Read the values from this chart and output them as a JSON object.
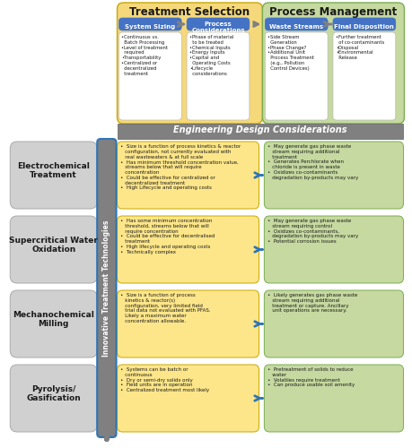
{
  "eng_banner": "Engineering Design Considerations",
  "vert_label": "Innovative Treatment Technologies",
  "side_labels": [
    "Electrochemical\nTreatment",
    "Supercritical Water\nOxidation",
    "Mechanochemical\nMilling",
    "Pyrolysis/\nGasification"
  ],
  "top_bullet_system": "•Continuous vs.\n  Batch Processing\n•Level of treatment\n  required\n•Transportability\n•Centralized or\n  decentralized\n  treatment",
  "top_bullet_process": "•Phase of material\n  to be treated\n•Chemical Inputs\n•Energy Inputs\n•Capital and\n  Operating Costs\n•Lifecycle\n  considerations",
  "top_bullet_waste": "•Side Stream\n  Generation\n•Phase Change?\n•Additional Unit\n  Process Treatment\n  (e.g., Pollution\n  Control Devices)",
  "top_bullet_final": "•Further treatment\n  of co-contaminants\n•Disposal\n•Environmental\n  Release",
  "left_bullets": [
    "•  Size is a function of process kinetics & reactor\n   configuration, not currently evaluated with\n   real wastewaters & at full scale\n•  Has minimum threshold concentration value,\n   streams below that will require\n   concentration\n•  Could be effective for centralized or\n   decentralized treatment\n•  High Lifecycle and operating costs",
    "•  Has some minimum concentration\n   threshold, streams below that will\n   require concentration\n•  Could be effective for decentralised\n   treatment\n•  High lifecycle and operating costs\n•  Technically complex",
    "•  Size is a function of process\n   kinetics & reactor(s)\n   configuration, very limited field\n   trial data not evaluated with PFAS.\n   Likely a maximum water\n   concentration allowable.",
    "•  Systems can be batch or\n   continuous\n•  Dry or semi-dry solids only\n•  Field units are in operation\n•  Centralized treatment most likely"
  ],
  "right_bullets": [
    "•  May generate gas phase waste\n   stream requiring additional\n   treatment\n•  Generates Perchlorate when\n   chloride is present in waste\n•  Oxidizes co-contaminants\n   degradation by-products may vary",
    "•  May generate gas phase waste\n   stream requiring control\n•  Oxidizes co-contaminants,\n   degradation by-products may vary\n•  Potential corrosion issues",
    "•  Likely generates gas phase waste\n   stream requiring additional\n   treatment or capture. Ancillary\n   unit operations are necessary.",
    "•  Pretreatment of solids to reduce\n   water\n•  Volatiles require treatment\n•  Can produce usable soil amenity"
  ],
  "colors": {
    "yellow_bg": "#F5D87A",
    "green_bg": "#C6D9A0",
    "blue_header": "#4472C4",
    "gray_vert": "#808080",
    "gray_label": "#D0D0D0",
    "yellow_cell": "#FDE68A",
    "green_cell": "#C6D9A0",
    "white": "#FFFFFF",
    "arrow_blue": "#2E75B6",
    "arrow_gray": "#808080",
    "banner_bg": "#808080",
    "text_dark": "#1A1A1A",
    "border_yellow": "#C8A800",
    "border_green": "#7AAD50",
    "blue_vert_border": "#2E75B6"
  }
}
